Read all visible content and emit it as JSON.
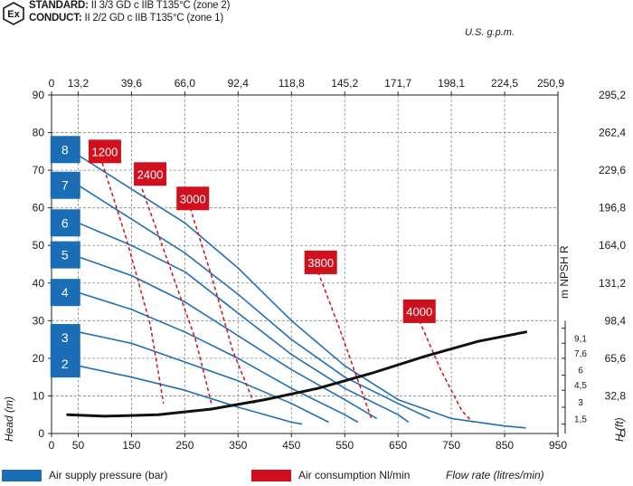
{
  "header": {
    "ex_symbol": "Ex",
    "standard_label": "STANDARD:",
    "standard_text": " II 3/3 GD c IIB T135°C (zone 2)",
    "conduct_label": "CONDUCT:",
    "conduct_text": " II 2/2 GD c IIB T135°C (zone 1)"
  },
  "units": {
    "top_axis": "U.S. g.p.m.",
    "x_axis": "Flow rate (litres/min)",
    "y_left": "Head  (m)",
    "y_right": "H (ft)",
    "npsh": "m NPSH R"
  },
  "legend": {
    "air_supply": "Air supply pressure (bar)",
    "air_consumption": "Air consumption Nl/min"
  },
  "colors": {
    "blue": "#1b6db5",
    "red": "#d0101d",
    "curve": "#1f6fb8",
    "npsh_curve": "#111111",
    "grid": "#8a8a8a"
  },
  "chart_data": {
    "type": "line",
    "xlabel": "Flow rate (litres/min)",
    "ylabel": "Head (m)",
    "xlim": [
      0,
      950
    ],
    "ylim": [
      0,
      90
    ],
    "x_ticks": [
      0,
      50,
      150,
      250,
      350,
      450,
      550,
      650,
      750,
      850,
      950
    ],
    "x_tick_labels": [
      "0",
      "50",
      "150",
      "250",
      "350",
      "450",
      "550",
      "650",
      "750",
      "850",
      "950"
    ],
    "y_ticks": [
      0,
      10,
      20,
      30,
      40,
      50,
      60,
      70,
      80,
      90
    ],
    "y_tick_labels": [
      "0",
      "10",
      "20",
      "30",
      "40",
      "50",
      "60",
      "70",
      "80",
      "90"
    ],
    "top_ticks": [
      0,
      50,
      150,
      250,
      350,
      450,
      550,
      650,
      750,
      850,
      950
    ],
    "top_tick_labels": [
      "0",
      "13,2",
      "39,6",
      "66,0",
      "92,4",
      "118,8",
      "145,2",
      "171,7",
      "198,1",
      "224,5",
      "250,9"
    ],
    "right_ticks": [
      0,
      10,
      20,
      30,
      40,
      50,
      60,
      70,
      80,
      90
    ],
    "right_tick_labels": [
      "0",
      "32,8",
      "65,6",
      "98,4",
      "131,2",
      "164,0",
      "196,8",
      "229,6",
      "262,4",
      "295,2"
    ],
    "npsh_ticks": [
      2.5,
      7,
      11.5,
      15.5,
      20,
      24,
      28
    ],
    "npsh_tick_labels": [
      "1,5",
      "3",
      "4,5",
      "6",
      "7,6",
      "9,1",
      ""
    ],
    "pressure_series": [
      {
        "name": "8",
        "label_head": 75.5,
        "points": [
          [
            50,
            74
          ],
          [
            150,
            65
          ],
          [
            250,
            56
          ],
          [
            350,
            44
          ],
          [
            450,
            30
          ],
          [
            550,
            18
          ],
          [
            650,
            9
          ],
          [
            750,
            4
          ],
          [
            850,
            2
          ],
          [
            890,
            1.5
          ]
        ]
      },
      {
        "name": "7",
        "label_head": 66,
        "points": [
          [
            50,
            66
          ],
          [
            150,
            57
          ],
          [
            250,
            48
          ],
          [
            350,
            37
          ],
          [
            450,
            25
          ],
          [
            550,
            15
          ],
          [
            650,
            8
          ],
          [
            710,
            4
          ]
        ]
      },
      {
        "name": "6",
        "label_head": 56,
        "points": [
          [
            50,
            56
          ],
          [
            150,
            50
          ],
          [
            250,
            43
          ],
          [
            350,
            32
          ],
          [
            450,
            21
          ],
          [
            550,
            12
          ],
          [
            650,
            5
          ],
          [
            670,
            3
          ]
        ]
      },
      {
        "name": "5",
        "label_head": 47.5,
        "points": [
          [
            50,
            47
          ],
          [
            150,
            42
          ],
          [
            250,
            35
          ],
          [
            350,
            26
          ],
          [
            450,
            17
          ],
          [
            550,
            9
          ],
          [
            610,
            4
          ]
        ]
      },
      {
        "name": "4",
        "label_head": 37.5,
        "points": [
          [
            50,
            37.5
          ],
          [
            150,
            33
          ],
          [
            250,
            27
          ],
          [
            350,
            20
          ],
          [
            450,
            12
          ],
          [
            550,
            5
          ],
          [
            575,
            3
          ]
        ]
      },
      {
        "name": "3",
        "label_head": 25.5,
        "points": [
          [
            50,
            27
          ],
          [
            150,
            24
          ],
          [
            250,
            19
          ],
          [
            350,
            14
          ],
          [
            450,
            8
          ],
          [
            520,
            3
          ]
        ]
      },
      {
        "name": "2",
        "label_head": 18.5,
        "points": [
          [
            50,
            18
          ],
          [
            150,
            15
          ],
          [
            250,
            11.5
          ],
          [
            350,
            7
          ],
          [
            450,
            3
          ],
          [
            470,
            2.5
          ]
        ]
      }
    ],
    "air_consumption": [
      {
        "label": "1200",
        "x": 100,
        "y": 75,
        "points": [
          [
            95,
            72
          ],
          [
            140,
            52
          ],
          [
            185,
            29
          ],
          [
            210,
            8
          ]
        ]
      },
      {
        "label": "2400",
        "x": 185,
        "y": 69,
        "points": [
          [
            170,
            65
          ],
          [
            220,
            45
          ],
          [
            270,
            25
          ],
          [
            300,
            8
          ]
        ]
      },
      {
        "label": "3000",
        "x": 265,
        "y": 62.5,
        "points": [
          [
            260,
            60
          ],
          [
            300,
            42
          ],
          [
            340,
            22
          ],
          [
            380,
            8
          ]
        ]
      },
      {
        "label": "3800",
        "x": 505,
        "y": 45.5,
        "points": [
          [
            500,
            43
          ],
          [
            540,
            28
          ],
          [
            580,
            12
          ],
          [
            600,
            4
          ]
        ]
      },
      {
        "label": "4000",
        "x": 690,
        "y": 32.5,
        "points": [
          [
            690,
            30
          ],
          [
            730,
            17
          ],
          [
            770,
            6
          ],
          [
            790,
            3
          ]
        ]
      }
    ],
    "npsh_curve": {
      "points": [
        [
          30,
          5
        ],
        [
          100,
          4.6
        ],
        [
          200,
          5
        ],
        [
          300,
          6.5
        ],
        [
          400,
          9
        ],
        [
          500,
          12
        ],
        [
          600,
          16
        ],
        [
          700,
          20.5
        ],
        [
          800,
          24.5
        ],
        [
          890,
          27
        ]
      ]
    }
  }
}
